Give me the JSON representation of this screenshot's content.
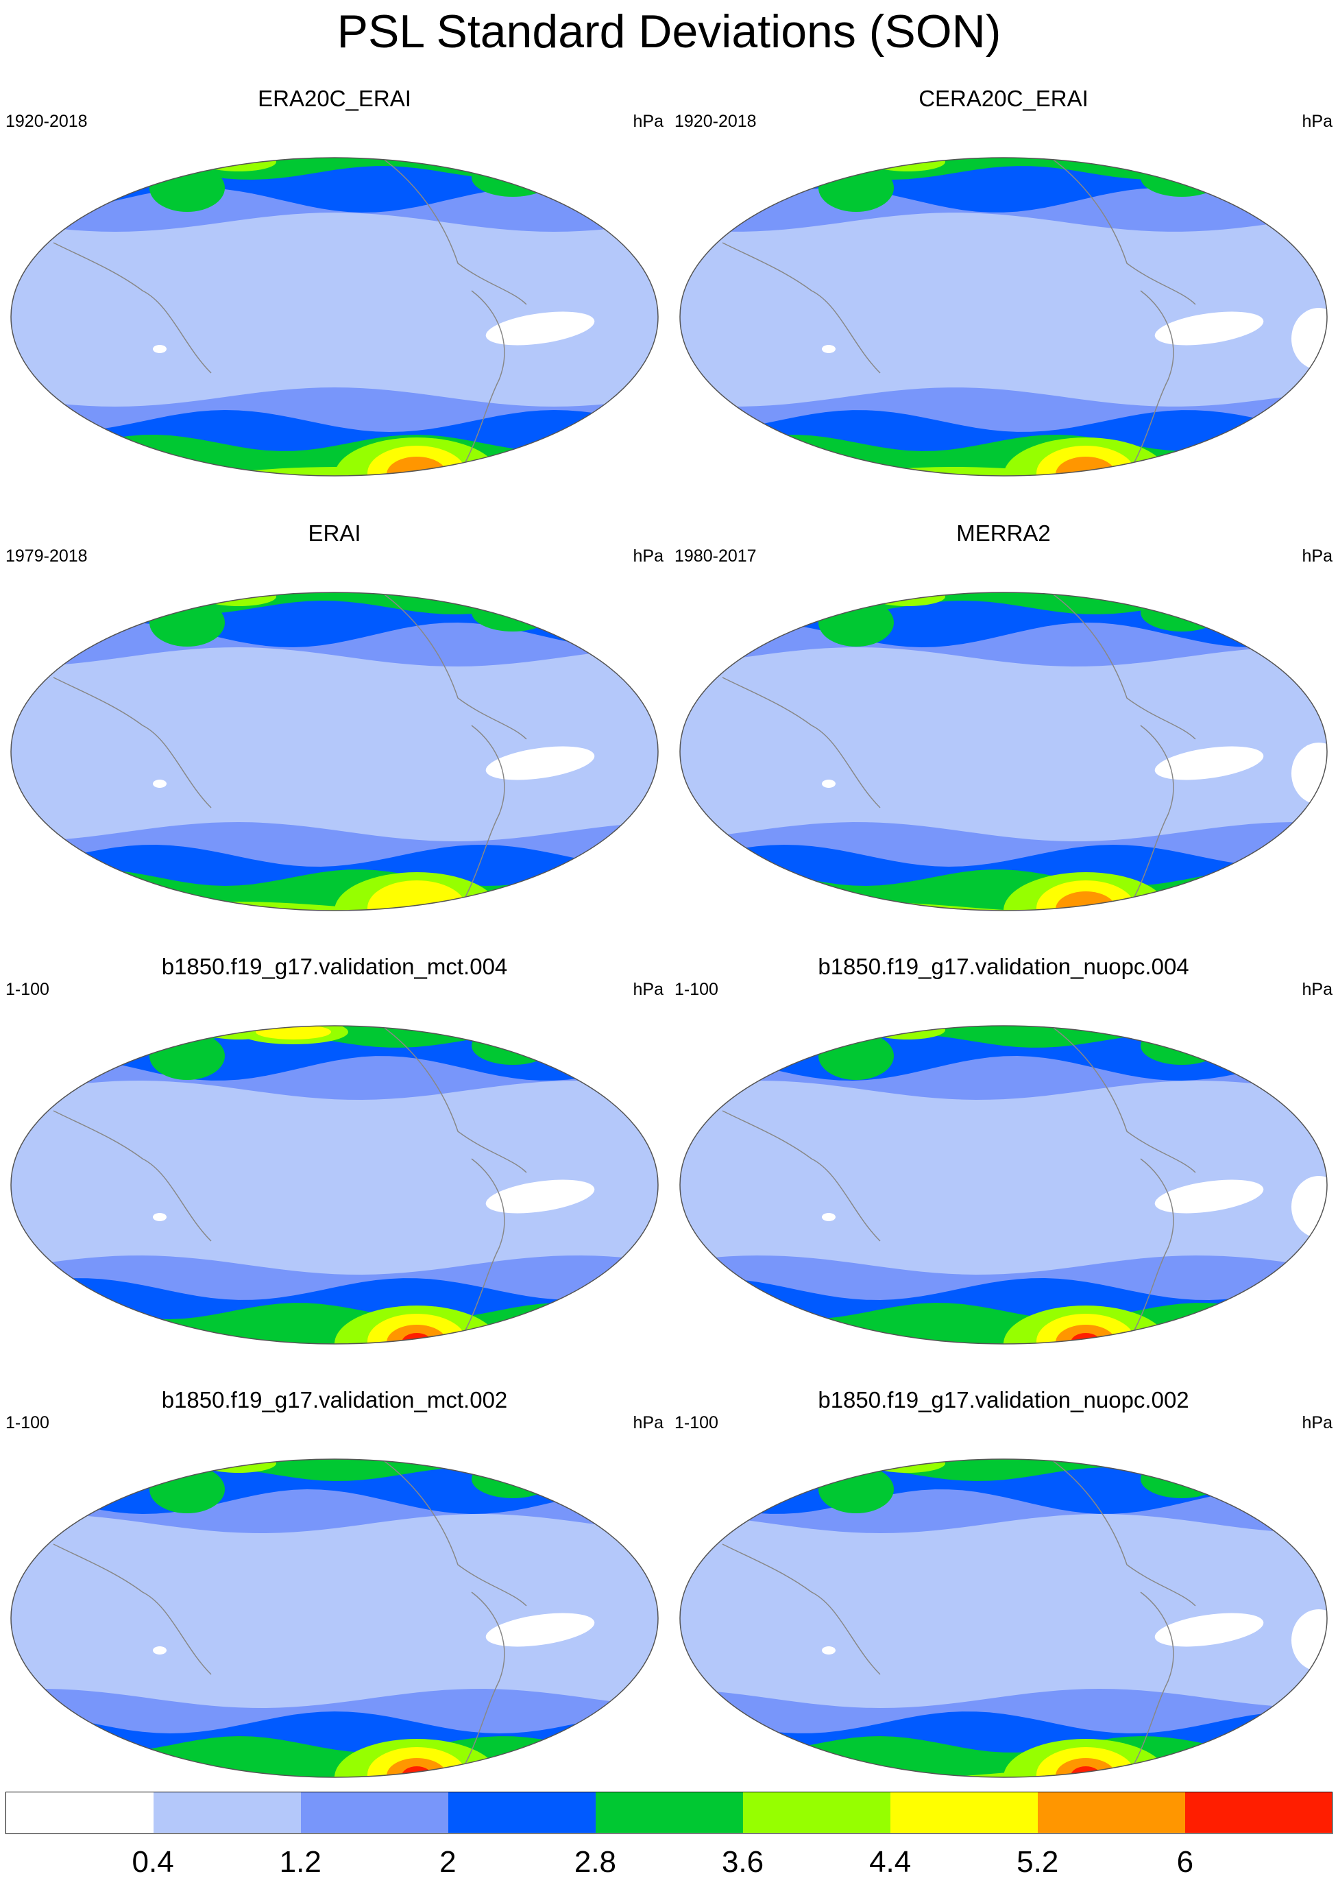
{
  "title": "PSL Standard Deviations (SON)",
  "panels": [
    {
      "title": "ERA20C_ERAI",
      "period": "1920-2018",
      "units": "hPa",
      "max_class": 7
    },
    {
      "title": "CERA20C_ERAI",
      "period": "1920-2018",
      "units": "hPa",
      "max_class": 7
    },
    {
      "title": "ERAI",
      "period": "1979-2018",
      "units": "hPa",
      "max_class": 6
    },
    {
      "title": "MERRA2",
      "period": "1980-2017",
      "units": "hPa",
      "max_class": 7
    },
    {
      "title": "b1850.f19_g17.validation_mct.004",
      "period": "1-100",
      "units": "hPa",
      "max_class": 8
    },
    {
      "title": "b1850.f19_g17.validation_nuopc.004",
      "period": "1-100",
      "units": "hPa",
      "max_class": 8
    },
    {
      "title": "b1850.f19_g17.validation_mct.002",
      "period": "1-100",
      "units": "hPa",
      "max_class": 8
    },
    {
      "title": "b1850.f19_g17.validation_nuopc.002",
      "period": "1-100",
      "units": "hPa",
      "max_class": 8
    }
  ],
  "colorbar": {
    "levels": [
      "0.4",
      "1.2",
      "2",
      "2.8",
      "3.6",
      "4.4",
      "5.2",
      "6"
    ],
    "colors": [
      "#ffffff",
      "#b4c8fa",
      "#7896fa",
      "#005aff",
      "#00c832",
      "#96ff00",
      "#ffff00",
      "#ff9600",
      "#ff1e00"
    ]
  }
}
